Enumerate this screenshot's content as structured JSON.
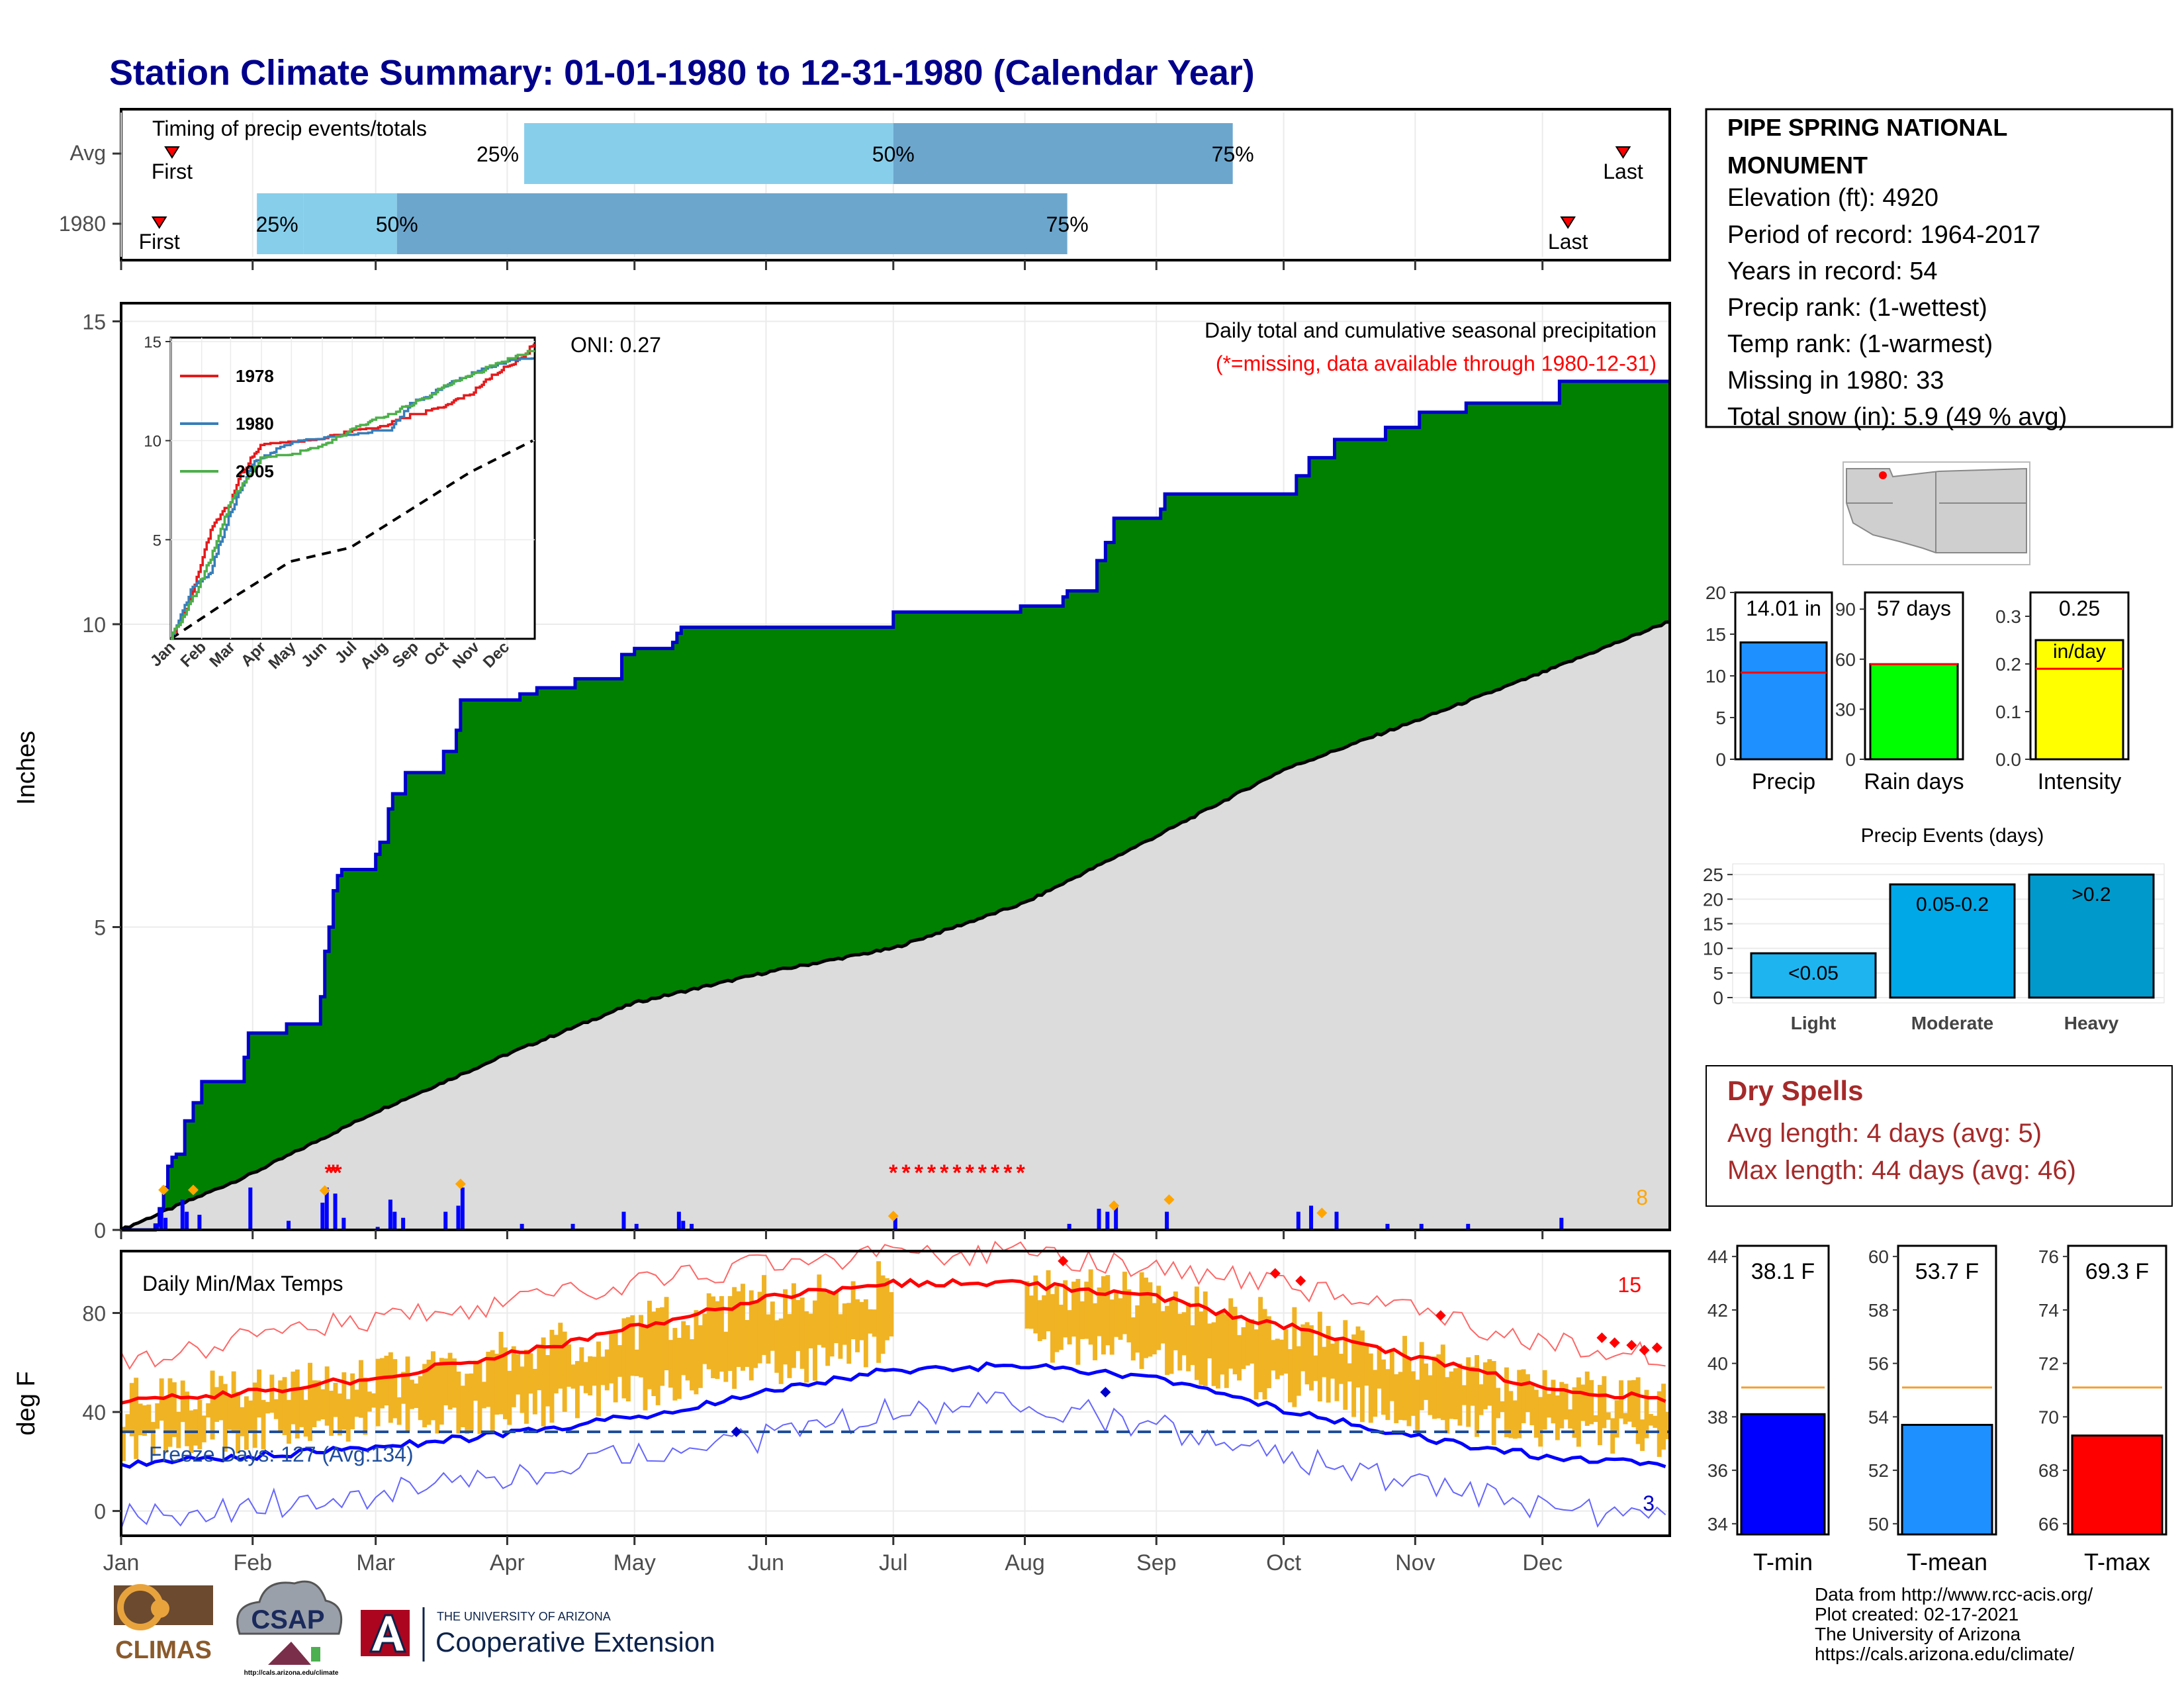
{
  "title": "Station Climate Summary: 01-01-1980 to 12-31-1980 (Calendar Year)",
  "station": {
    "name_line1": "PIPE SPRING NATIONAL",
    "name_line2": "MONUMENT",
    "lines": [
      "Elevation (ft): 4920",
      "Period of record: 1964-2017",
      "Years in record: 54",
      "Precip rank:  (1-wettest)",
      "Temp rank:  (1-warmest)",
      "Missing in 1980: 33",
      "Total snow (in): 5.9 (49 % avg)"
    ]
  },
  "colors": {
    "green_fill": "#008000",
    "outline": "#0000CD",
    "normal_fill": "#DCDCDC",
    "avg_light": "#87CEEB",
    "avg_dark": "#6CA6CD",
    "missing": "#FF0000",
    "temp_band": "#F0B323"
  },
  "months": [
    "Jan",
    "Feb",
    "Mar",
    "Apr",
    "May",
    "Jun",
    "Jul",
    "Aug",
    "Sep",
    "Oct",
    "Nov",
    "Dec"
  ],
  "timing": {
    "label": "Timing of precip events/totals",
    "rows": [
      {
        "name": "Avg",
        "first_day": 12,
        "last_day": 354,
        "p25_day": 95,
        "p50_day": 182,
        "p75_day": 262,
        "p25_label": "25%",
        "p50_label": "50%",
        "p75_label": "75%",
        "first_label": "First",
        "last_label": "Last"
      },
      {
        "name": "1980",
        "first_day": 9,
        "last_day": 341,
        "p25_day": 43,
        "p50_day": 65,
        "p75_day": 223,
        "p25_label": "25%",
        "p50_label": "50%",
        "p75_label": "75%",
        "first_label": "First",
        "last_label": "Last"
      }
    ]
  },
  "chart_data": [
    {
      "type": "area",
      "title": "Daily total and cumulative seasonal precipitation",
      "subtitle": "(*=missing, data available through 1980-12-31)",
      "oni_label": "ONI: 0.27",
      "corner_count": "8",
      "ylabel": "Inches",
      "ylim": [
        0,
        15.3
      ],
      "yticks": [
        0,
        5,
        10,
        15
      ],
      "cumulative_1980_steps": [
        [
          0,
          0
        ],
        [
          8,
          0.08
        ],
        [
          9,
          0.35
        ],
        [
          10,
          0.7
        ],
        [
          11,
          1.05
        ],
        [
          12,
          1.2
        ],
        [
          13,
          1.25
        ],
        [
          15,
          1.8
        ],
        [
          17,
          2.1
        ],
        [
          19,
          2.45
        ],
        [
          28,
          2.45
        ],
        [
          29,
          2.85
        ],
        [
          30,
          3.25
        ],
        [
          38,
          3.25
        ],
        [
          39,
          3.4
        ],
        [
          46,
          3.4
        ],
        [
          47,
          3.85
        ],
        [
          48,
          4.6
        ],
        [
          49,
          5.0
        ],
        [
          50,
          5.6
        ],
        [
          51,
          5.85
        ],
        [
          52,
          5.95
        ],
        [
          59,
          5.95
        ],
        [
          60,
          6.2
        ],
        [
          61,
          6.4
        ],
        [
          63,
          6.95
        ],
        [
          64,
          7.2
        ],
        [
          67,
          7.55
        ],
        [
          75,
          7.55
        ],
        [
          76,
          7.9
        ],
        [
          79,
          8.25
        ],
        [
          80,
          8.75
        ],
        [
          93,
          8.75
        ],
        [
          94,
          8.85
        ],
        [
          98,
          8.95
        ],
        [
          106,
          8.95
        ],
        [
          107,
          9.1
        ],
        [
          117,
          9.1
        ],
        [
          118,
          9.5
        ],
        [
          121,
          9.6
        ],
        [
          129,
          9.6
        ],
        [
          130,
          9.7
        ],
        [
          131,
          9.85
        ],
        [
          132,
          9.95
        ],
        [
          181,
          9.95
        ],
        [
          182,
          10.2
        ],
        [
          211,
          10.2
        ],
        [
          212,
          10.3
        ],
        [
          221,
          10.3
        ],
        [
          222,
          10.45
        ],
        [
          223,
          10.55
        ],
        [
          229,
          10.55
        ],
        [
          230,
          11.05
        ],
        [
          232,
          11.35
        ],
        [
          234,
          11.75
        ],
        [
          244,
          11.75
        ],
        [
          245,
          11.9
        ],
        [
          246,
          12.15
        ],
        [
          276,
          12.15
        ],
        [
          277,
          12.45
        ],
        [
          280,
          12.75
        ],
        [
          285,
          12.75
        ],
        [
          286,
          13.05
        ],
        [
          297,
          13.05
        ],
        [
          298,
          13.25
        ],
        [
          305,
          13.25
        ],
        [
          306,
          13.5
        ],
        [
          316,
          13.5
        ],
        [
          317,
          13.65
        ],
        [
          338,
          13.65
        ],
        [
          339,
          14.01
        ],
        [
          365,
          14.01
        ]
      ],
      "avg_cumulative": [
        [
          0,
          0
        ],
        [
          30,
          0.9
        ],
        [
          60,
          1.95
        ],
        [
          91,
          2.9
        ],
        [
          121,
          3.75
        ],
        [
          152,
          4.25
        ],
        [
          182,
          4.65
        ],
        [
          213,
          5.4
        ],
        [
          244,
          6.5
        ],
        [
          274,
          7.6
        ],
        [
          305,
          8.4
        ],
        [
          335,
          9.2
        ],
        [
          365,
          10.05
        ]
      ],
      "daily_bars": [
        [
          8,
          0.1
        ],
        [
          9,
          0.35
        ],
        [
          10,
          0.2
        ],
        [
          14,
          0.5
        ],
        [
          15,
          0.3
        ],
        [
          18,
          0.25
        ],
        [
          30,
          0.7
        ],
        [
          39,
          0.15
        ],
        [
          47,
          0.45
        ],
        [
          48,
          0.7
        ],
        [
          50,
          0.6
        ],
        [
          52,
          0.2
        ],
        [
          60,
          0.05
        ],
        [
          63,
          0.5
        ],
        [
          64,
          0.3
        ],
        [
          66,
          0.2
        ],
        [
          76,
          0.3
        ],
        [
          79,
          0.4
        ],
        [
          80,
          0.7
        ],
        [
          94,
          0.1
        ],
        [
          106,
          0.1
        ],
        [
          118,
          0.3
        ],
        [
          121,
          0.1
        ],
        [
          131,
          0.3
        ],
        [
          132,
          0.15
        ],
        [
          134,
          0.1
        ],
        [
          182,
          0.2
        ],
        [
          223,
          0.1
        ],
        [
          230,
          0.35
        ],
        [
          232,
          0.3
        ],
        [
          234,
          0.4
        ],
        [
          246,
          0.3
        ],
        [
          277,
          0.3
        ],
        [
          280,
          0.4
        ],
        [
          286,
          0.3
        ],
        [
          298,
          0.1
        ],
        [
          306,
          0.1
        ],
        [
          317,
          0.1
        ],
        [
          339,
          0.2
        ]
      ],
      "snow_markers": [
        [
          10,
          0.66
        ],
        [
          17,
          0.66
        ],
        [
          48,
          0.65
        ],
        [
          80,
          0.76
        ],
        [
          182,
          0.23
        ],
        [
          234,
          0.4
        ],
        [
          247,
          0.5
        ],
        [
          283,
          0.28
        ]
      ],
      "missing_days": [
        [
          49,
          0.97
        ],
        [
          50,
          0.97
        ],
        [
          51,
          0.97
        ],
        [
          182,
          0.97
        ],
        [
          185,
          0.97
        ],
        [
          188,
          0.97
        ],
        [
          191,
          0.97
        ],
        [
          194,
          0.97
        ],
        [
          197,
          0.97
        ],
        [
          200,
          0.97
        ],
        [
          203,
          0.97
        ],
        [
          206,
          0.97
        ],
        [
          209,
          0.97
        ],
        [
          212,
          0.97
        ]
      ],
      "inset": {
        "type": "line",
        "series": [
          {
            "name": "1978",
            "color": "#E41A1C",
            "values": [
              [
                0,
                0
              ],
              [
                20,
                2
              ],
              [
                40,
                5.5
              ],
              [
                60,
                6.9
              ],
              [
                70,
                8.3
              ],
              [
                90,
                9.7
              ],
              [
                150,
                10.0
              ],
              [
                180,
                10.4
              ],
              [
                210,
                10.6
              ],
              [
                240,
                11.2
              ],
              [
                270,
                11.6
              ],
              [
                300,
                12.3
              ],
              [
                330,
                13.5
              ],
              [
                355,
                14.2
              ],
              [
                365,
                15
              ]
            ]
          },
          {
            "name": "1980",
            "color": "#377EB8",
            "values": [
              [
                0,
                0
              ],
              [
                20,
                2.4
              ],
              [
                40,
                3.4
              ],
              [
                60,
                6.4
              ],
              [
                80,
                8.7
              ],
              [
                120,
                9.9
              ],
              [
                180,
                10.2
              ],
              [
                220,
                10.5
              ],
              [
                240,
                11.8
              ],
              [
                280,
                12.8
              ],
              [
                310,
                13.5
              ],
              [
                340,
                14.0
              ],
              [
                365,
                14.01
              ]
            ]
          },
          {
            "name": "2005",
            "color": "#4DAF4A",
            "values": [
              [
                0,
                0
              ],
              [
                20,
                1.8
              ],
              [
                40,
                4.0
              ],
              [
                60,
                6.9
              ],
              [
                90,
                9.0
              ],
              [
                150,
                9.6
              ],
              [
                180,
                10.5
              ],
              [
                220,
                11.3
              ],
              [
                250,
                12.0
              ],
              [
                280,
                12.8
              ],
              [
                320,
                13.7
              ],
              [
                365,
                14.5
              ]
            ]
          }
        ],
        "avg": [
          [
            0,
            0
          ],
          [
            60,
            2.0
          ],
          [
            120,
            3.9
          ],
          [
            180,
            4.6
          ],
          [
            240,
            6.5
          ],
          [
            300,
            8.4
          ],
          [
            365,
            10.05
          ]
        ],
        "yticks": [
          5,
          10,
          15
        ],
        "months": [
          "Jan",
          "Feb",
          "Mar",
          "Apr",
          "May",
          "Jun",
          "Jul",
          "Aug",
          "Sep",
          "Oct",
          "Nov",
          "Dec"
        ]
      }
    },
    {
      "type": "line",
      "title": "Daily Min/Max Temps",
      "ylabel": "deg F",
      "ylim": [
        -10,
        105
      ],
      "yticks": [
        0,
        40,
        80
      ],
      "freeze_label": "Freeze Days: 127 (Avg:134)",
      "freeze_line": 32,
      "count_hot": "15",
      "count_cold": "3",
      "avg_max": [
        [
          0,
          44
        ],
        [
          30,
          48
        ],
        [
          60,
          54
        ],
        [
          91,
          63
        ],
        [
          121,
          74
        ],
        [
          152,
          86
        ],
        [
          182,
          92
        ],
        [
          213,
          92
        ],
        [
          244,
          86
        ],
        [
          274,
          75
        ],
        [
          305,
          62
        ],
        [
          335,
          50
        ],
        [
          365,
          45
        ]
      ],
      "avg_min": [
        [
          0,
          19
        ],
        [
          30,
          22
        ],
        [
          60,
          26
        ],
        [
          91,
          31
        ],
        [
          121,
          38
        ],
        [
          152,
          48
        ],
        [
          182,
          57
        ],
        [
          213,
          59
        ],
        [
          244,
          53
        ],
        [
          274,
          41
        ],
        [
          305,
          30
        ],
        [
          335,
          22
        ],
        [
          365,
          19
        ]
      ],
      "record_max": [
        [
          0,
          60
        ],
        [
          30,
          70
        ],
        [
          60,
          78
        ],
        [
          91,
          84
        ],
        [
          121,
          92
        ],
        [
          152,
          100
        ],
        [
          182,
          104
        ],
        [
          213,
          104
        ],
        [
          244,
          98
        ],
        [
          274,
          92
        ],
        [
          305,
          80
        ],
        [
          335,
          68
        ],
        [
          365,
          62
        ]
      ],
      "record_min": [
        [
          0,
          -2
        ],
        [
          30,
          2
        ],
        [
          60,
          6
        ],
        [
          91,
          14
        ],
        [
          121,
          22
        ],
        [
          152,
          30
        ],
        [
          182,
          40
        ],
        [
          213,
          44
        ],
        [
          244,
          34
        ],
        [
          274,
          22
        ],
        [
          305,
          10
        ],
        [
          335,
          2
        ],
        [
          365,
          -4
        ]
      ],
      "missing_range_days": [
        182,
        213
      ],
      "hot_marks": [
        [
          222,
          101
        ],
        [
          272,
          96
        ],
        [
          278,
          93
        ],
        [
          311,
          79
        ],
        [
          349,
          70
        ],
        [
          352,
          68
        ],
        [
          356,
          67
        ],
        [
          359,
          65
        ],
        [
          362,
          66
        ]
      ],
      "cold_marks": [
        [
          145,
          32
        ],
        [
          232,
          48
        ]
      ]
    }
  ],
  "bar_panels": {
    "precip": {
      "value_label": "14.01 in",
      "name": "Precip",
      "value": 14.01,
      "avg": 10.4,
      "ylim": [
        0,
        20
      ],
      "yticks": [
        0,
        5,
        10,
        15,
        20
      ],
      "color": "#1E90FF"
    },
    "rain_days": {
      "value_label": "57 days",
      "name": "Rain days",
      "value": 57,
      "avg": 57,
      "ylim": [
        0,
        100
      ],
      "yticks": [
        0,
        30,
        60,
        90
      ],
      "color": "#00FF00"
    },
    "intensity": {
      "value_label": "0.25",
      "value_label2": "in/day",
      "name": "Intensity",
      "value": 0.25,
      "avg": 0.19,
      "ylim": [
        0,
        0.35
      ],
      "yticks": [
        "0.0",
        "0.1",
        "0.2",
        "0.3"
      ],
      "color": "#FFFF00"
    }
  },
  "precip_events": {
    "title": "Precip Events (days)",
    "yticks": [
      0,
      5,
      10,
      15,
      20,
      25
    ],
    "bars": [
      {
        "cat": "Light",
        "label": "<0.05",
        "value": 9,
        "color": "#1EB4F0"
      },
      {
        "cat": "Moderate",
        "label": "0.05-0.2",
        "value": 23,
        "color": "#00A8E8"
      },
      {
        "cat": "Heavy",
        "label": ">0.2",
        "value": 25,
        "color": "#0099CC"
      }
    ]
  },
  "dry_spells": {
    "title": "Dry Spells",
    "line1": "Avg length: 4 days (avg: 5)",
    "line2": "Max length: 44 days (avg: 46)"
  },
  "temp_panels": {
    "tmin": {
      "value_label": "38.1 F",
      "name": "T-min",
      "value": 38.1,
      "avg": 39.1,
      "ylim": [
        33.6,
        44.4
      ],
      "yticks": [
        34,
        36,
        38,
        40,
        42,
        44
      ],
      "color": "#0000FF"
    },
    "tmean": {
      "value_label": "53.7 F",
      "name": "T-mean",
      "value": 53.7,
      "avg": 55.1,
      "ylim": [
        49.6,
        60.4
      ],
      "yticks": [
        50,
        52,
        54,
        56,
        58,
        60
      ],
      "color": "#1E90FF"
    },
    "tmax": {
      "value_label": "69.3 F",
      "name": "T-max",
      "value": 69.3,
      "avg": 71.1,
      "ylim": [
        65.6,
        76.4
      ],
      "yticks": [
        66,
        68,
        70,
        72,
        74,
        76
      ],
      "color": "#FF0000"
    }
  },
  "footer": {
    "lines": [
      "Data from http://www.rcc-acis.org/",
      "Plot created: 02-17-2021",
      "The University of Arizona",
      "https://cals.arizona.edu/climate/"
    ],
    "climas": "CLIMAS",
    "csap": "CSAP",
    "csap_url": "http://cals.arizona.edu/climate",
    "ua_small": "THE UNIVERSITY OF ARIZONA",
    "ua_big": "Cooperative Extension"
  }
}
